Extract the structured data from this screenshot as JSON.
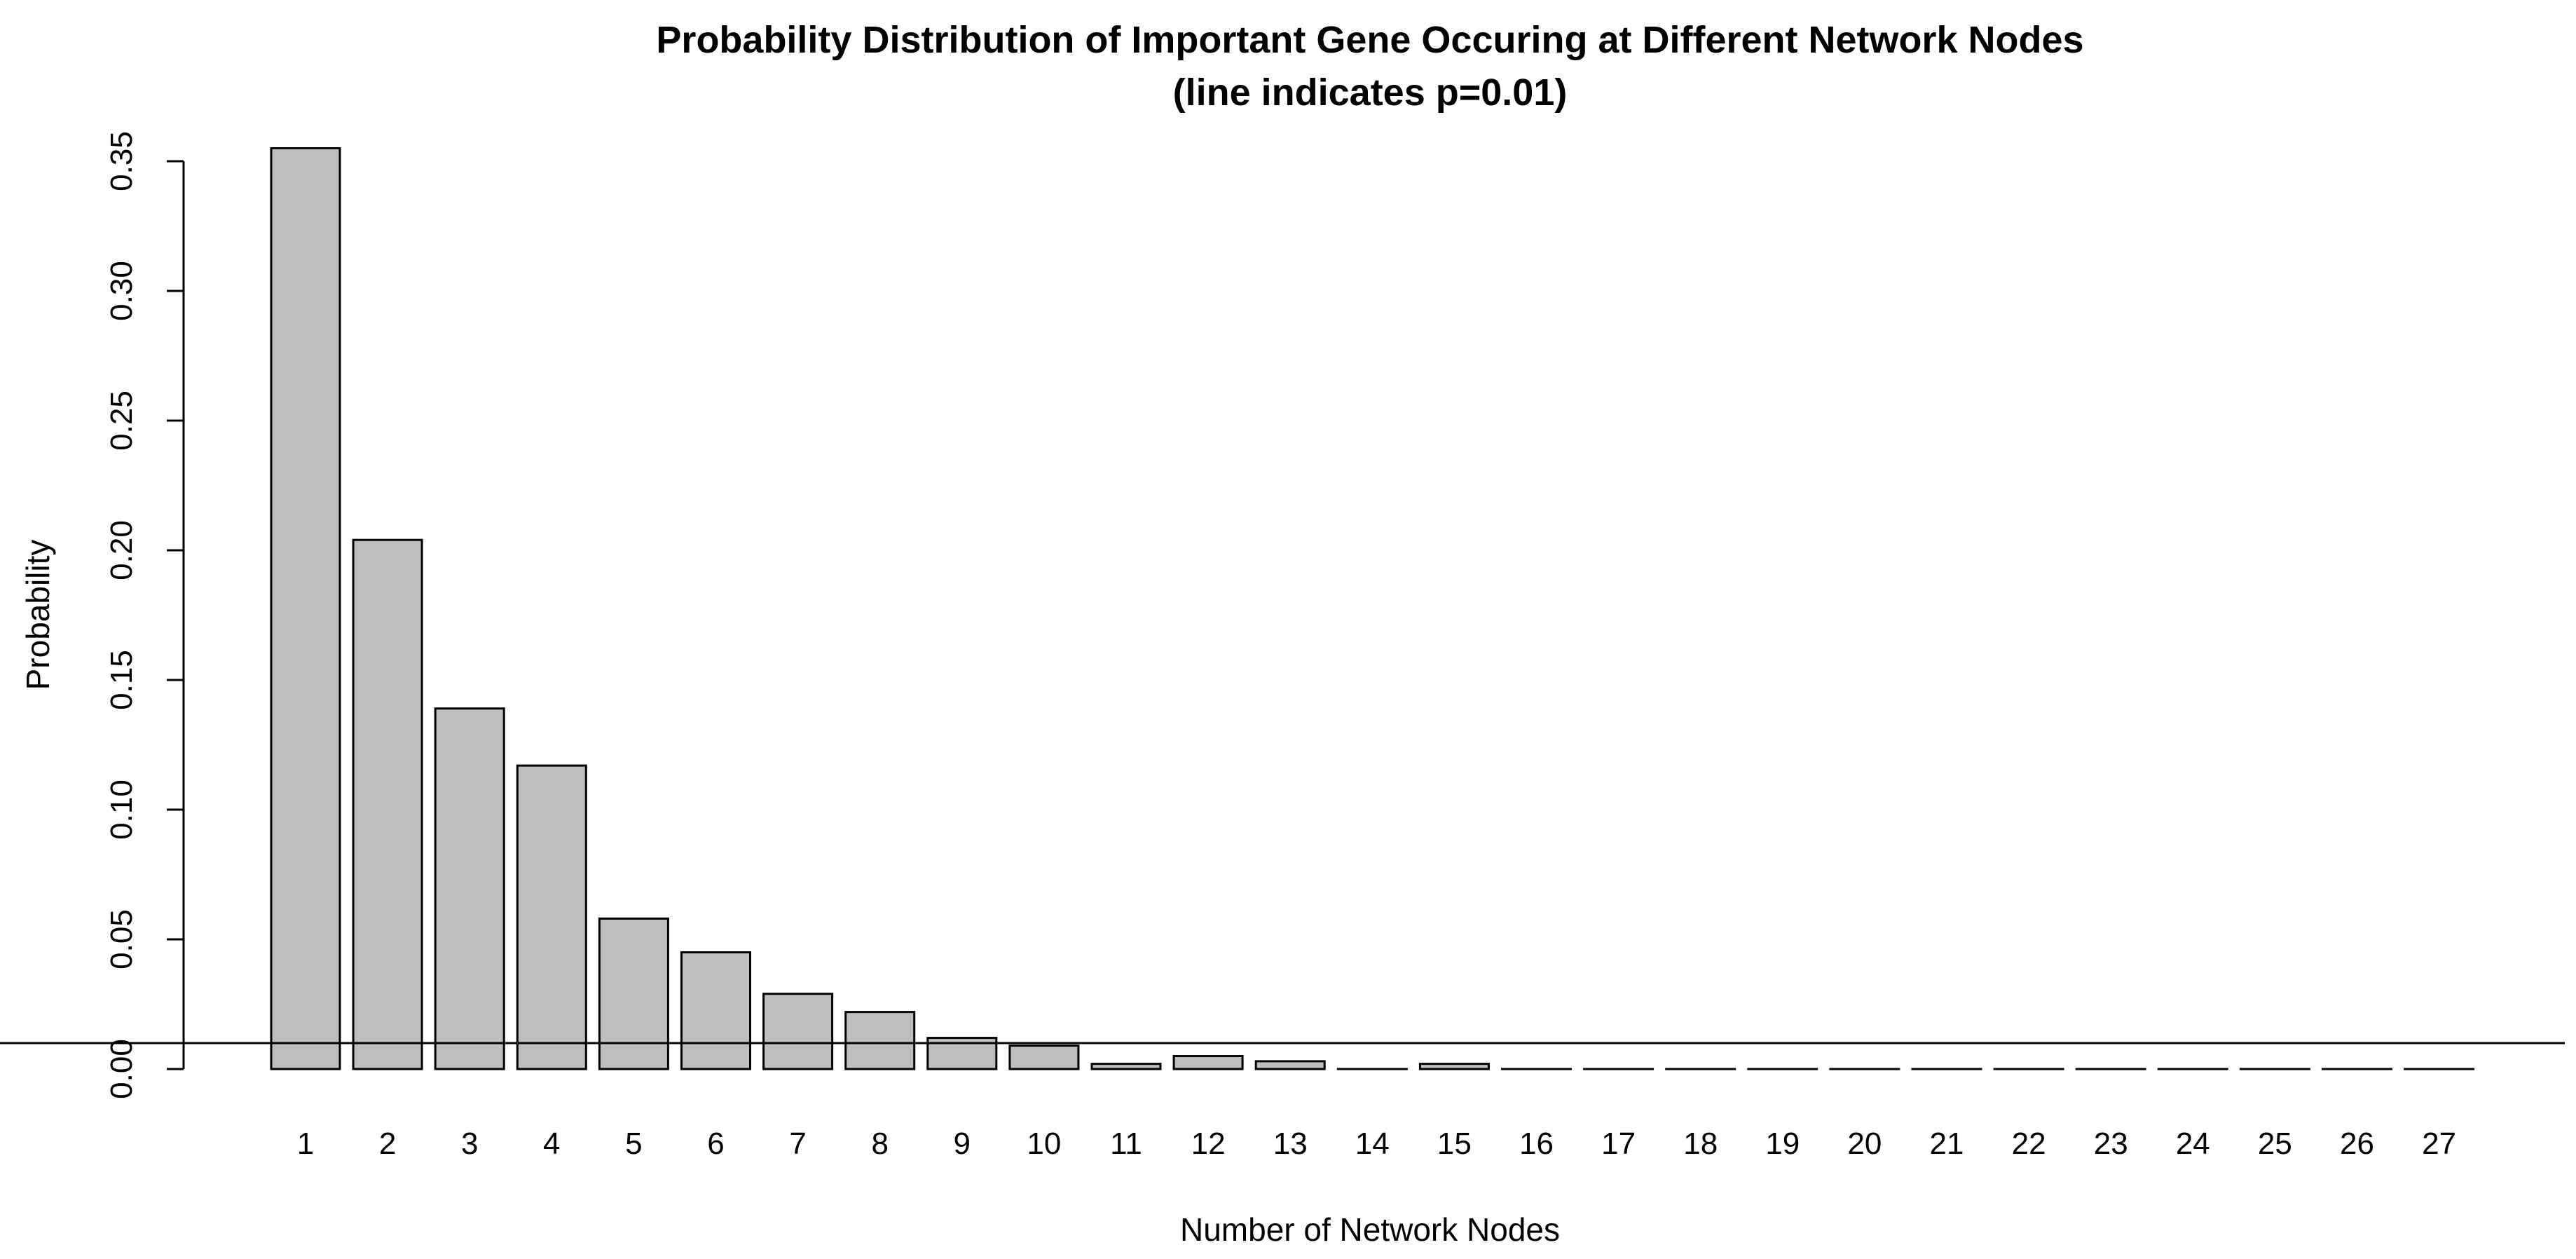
{
  "chart_data": {
    "type": "bar",
    "title": "Probability Distribution of Important Gene Occuring at Different Network Nodes",
    "subtitle": "(line indicates p=0.01)",
    "xlabel": "Number of Network Nodes",
    "ylabel": "Probability",
    "categories": [
      "1",
      "2",
      "3",
      "4",
      "5",
      "6",
      "7",
      "8",
      "9",
      "10",
      "11",
      "12",
      "13",
      "14",
      "15",
      "16",
      "17",
      "18",
      "19",
      "20",
      "21",
      "22",
      "23",
      "24",
      "25",
      "26",
      "27"
    ],
    "values": [
      0.355,
      0.204,
      0.139,
      0.117,
      0.058,
      0.045,
      0.029,
      0.022,
      0.012,
      0.009,
      0.002,
      0.005,
      0.003,
      0.0,
      0.002,
      0.0,
      0.0,
      0.0,
      0.0,
      0.0,
      0.0,
      0.0,
      0.0,
      0.0,
      0.0,
      0.0,
      0.0
    ],
    "ylim": [
      0,
      0.35
    ],
    "yticks": [
      "0.00",
      "0.05",
      "0.10",
      "0.15",
      "0.20",
      "0.25",
      "0.30",
      "0.35"
    ],
    "reference_line": 0.01,
    "bar_color": "#bebebe",
    "edge_color": "#000000"
  }
}
